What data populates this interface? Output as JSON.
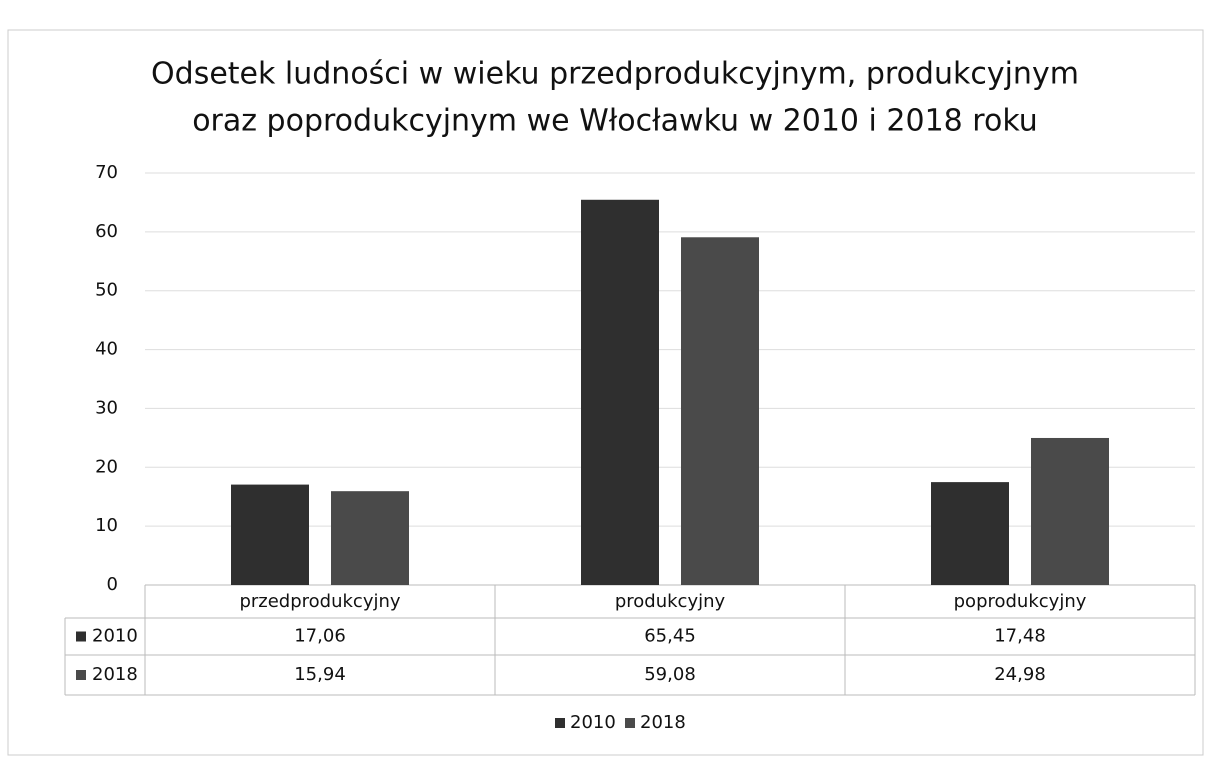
{
  "chart_data": {
    "type": "bar",
    "title": [
      "Odsetek ludności w wieku przedprodukcyjnym, produkcyjnym",
      "oraz poprodukcyjnym we Włocławku w 2010 i 2018 roku"
    ],
    "categories": [
      "przedprodukcyjny",
      "produkcyjny",
      "poprodukcyjny"
    ],
    "series": [
      {
        "name": "2010",
        "color": "#2f2f2f",
        "values": [
          17.06,
          65.45,
          17.48
        ],
        "value_labels": [
          "17,06",
          "65,45",
          "17,48"
        ]
      },
      {
        "name": "2018",
        "color": "#4a4a4a",
        "values": [
          15.94,
          59.08,
          24.98
        ],
        "value_labels": [
          "15,94",
          "59,08",
          "24,98"
        ]
      }
    ],
    "ylim": [
      0,
      70
    ],
    "yticks": [
      0,
      10,
      20,
      30,
      40,
      50,
      60,
      70
    ],
    "grid": true,
    "legend": "bottom"
  }
}
